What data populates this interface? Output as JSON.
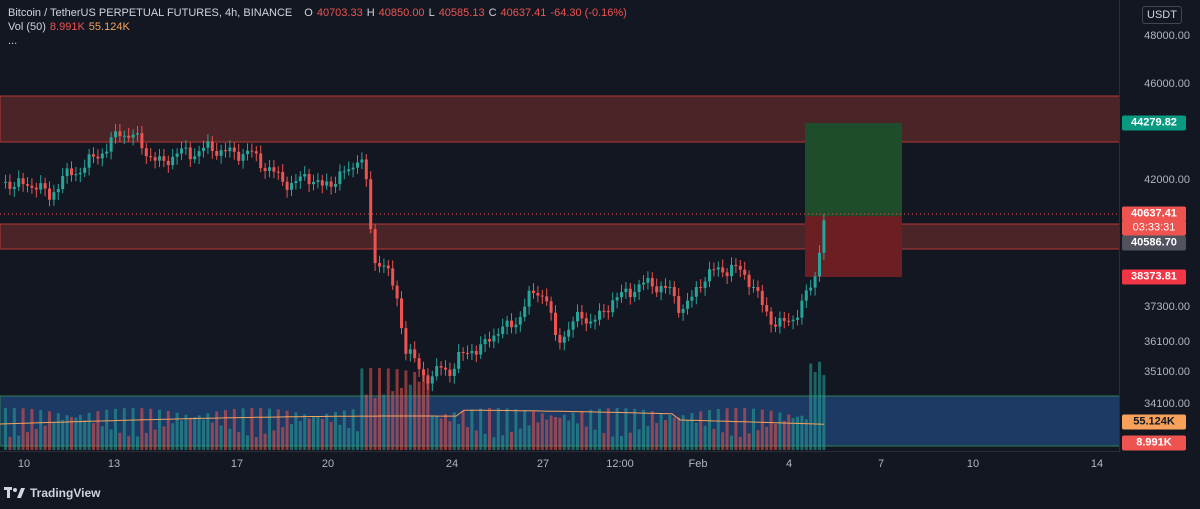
{
  "header": {
    "title": "Bitcoin / TetherUS PERPETUAL FUTURES, 4h, BINANCE",
    "open_label": "O",
    "open": "40703.33",
    "high_label": "H",
    "high": "40850.00",
    "low_label": "L",
    "low": "40585.13",
    "close_label": "C",
    "close": "40637.41",
    "change": "-64.30 (-0.16%)",
    "volume_label": "Vol (50)",
    "volume_value": "8.991K",
    "volume_ma": "55.124K",
    "more": "..."
  },
  "currency": "USDT",
  "price_axis": {
    "ticks": [
      "48000.00",
      "46000.00",
      "42000.00",
      "37300.00",
      "36100.00",
      "35100.00",
      "34100.00"
    ],
    "tags": {
      "target": "44279.82",
      "last": "40637.41",
      "countdown": "03:33:31",
      "entry": "40586.70",
      "stop": "38373.81",
      "vol_ma": "55.124K",
      "vol_last": "8.991K"
    }
  },
  "time_axis": {
    "ticks": [
      "10",
      "13",
      "17",
      "20",
      "24",
      "27",
      "12:00",
      "Feb",
      "4",
      "7",
      "10",
      "14"
    ]
  },
  "colors": {
    "background": "#131722",
    "up": "#26a69a",
    "down": "#ef5350",
    "resistance_zone": "#4a2426",
    "target_zone": "#1e4d2b",
    "stop_zone": "#6b1f23",
    "volume_zone": "#1c3a63",
    "volume_ma": "#f7a15b"
  },
  "branding": {
    "name": "TradingView"
  }
}
